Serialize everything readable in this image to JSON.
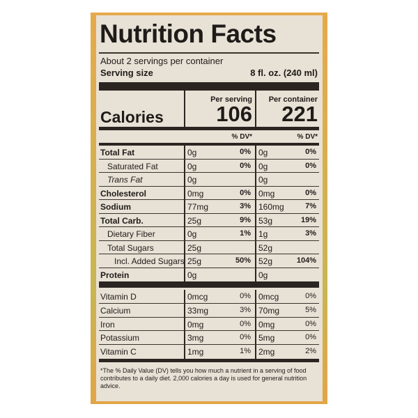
{
  "label": {
    "title": "Nutrition Facts",
    "servings": "About 2 servings per container",
    "serving_size_label": "Serving size",
    "serving_size": "8 fl. oz. (240 ml)",
    "per_serving": "Per serving",
    "per_container": "Per container",
    "calories_label": "Calories",
    "calories_serving": "106",
    "calories_container": "221",
    "dv_header": "% DV*",
    "nutrients": [
      {
        "name": "Total Fat",
        "bold": true,
        "serving": "0g",
        "serving_dv": "0%",
        "container": "0g",
        "container_dv": "0%"
      },
      {
        "name": "Saturated Fat",
        "indent": 1,
        "serving": "0g",
        "serving_dv": "0%",
        "container": "0g",
        "container_dv": "0%"
      },
      {
        "name": "Trans Fat",
        "indent": 1,
        "italic": true,
        "serving": "0g",
        "container": "0g"
      },
      {
        "name": "Cholesterol",
        "bold": true,
        "serving": "0mg",
        "serving_dv": "0%",
        "container": "0mg",
        "container_dv": "0%"
      },
      {
        "name": "Sodium",
        "bold": true,
        "serving": "77mg",
        "serving_dv": "3%",
        "container": "160mg",
        "container_dv": "7%"
      },
      {
        "name": "Total Carb.",
        "bold": true,
        "serving": "25g",
        "serving_dv": "9%",
        "container": "53g",
        "container_dv": "19%"
      },
      {
        "name": "Dietary Fiber",
        "indent": 1,
        "serving": "0g",
        "serving_dv": "1%",
        "container": "1g",
        "container_dv": "3%"
      },
      {
        "name": "Total Sugars",
        "indent": 1,
        "serving": "25g",
        "container": "52g"
      },
      {
        "name": "Incl. Added Sugars",
        "indent": 2,
        "serving": "25g",
        "serving_dv": "50%",
        "container": "52g",
        "container_dv": "104%"
      },
      {
        "name": "Protein",
        "bold": true,
        "serving": "0g",
        "container": "0g"
      }
    ],
    "vitamins": [
      {
        "name": "Vitamin D",
        "serving": "0mcg",
        "serving_dv": "0%",
        "container": "0mcg",
        "container_dv": "0%"
      },
      {
        "name": "Calcium",
        "serving": "33mg",
        "serving_dv": "3%",
        "container": "70mg",
        "container_dv": "5%"
      },
      {
        "name": "Iron",
        "serving": "0mg",
        "serving_dv": "0%",
        "container": "0mg",
        "container_dv": "0%"
      },
      {
        "name": "Potassium",
        "serving": "3mg",
        "serving_dv": "0%",
        "container": "5mg",
        "container_dv": "0%"
      },
      {
        "name": "Vitamin C",
        "serving": "1mg",
        "serving_dv": "1%",
        "container": "2mg",
        "container_dv": "2%"
      }
    ],
    "footnote": "*The % Daily Value (DV) tells you how much a nutrient in a serving of food contributes to a daily diet. 2,000 calories a day is used for general nutrition advice."
  }
}
